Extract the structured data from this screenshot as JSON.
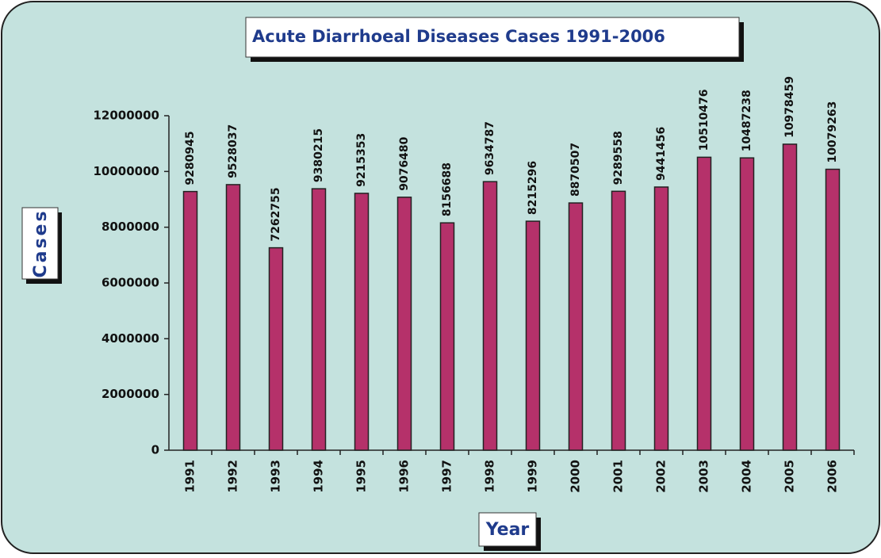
{
  "chart_data": {
    "type": "bar",
    "title": "Acute Diarrhoeal Diseases Cases 1991-2006",
    "x_label": "Year",
    "y_label": "Cases",
    "categories": [
      "1991",
      "1992",
      "1993",
      "1994",
      "1995",
      "1996",
      "1997",
      "1998",
      "1999",
      "2000",
      "2001",
      "2002",
      "2003",
      "2004",
      "2005",
      "2006"
    ],
    "values": [
      9280945,
      9528037,
      7262755,
      9380215,
      9215353,
      9076480,
      8156688,
      9634787,
      8215296,
      8870507,
      9289558,
      9441456,
      10510476,
      10487238,
      10978459,
      10079263
    ],
    "color": "#b5316a",
    "ylim": [
      0,
      12000000
    ],
    "yticks": [
      0,
      2000000,
      4000000,
      6000000,
      8000000,
      10000000,
      12000000
    ],
    "grid": false
  }
}
